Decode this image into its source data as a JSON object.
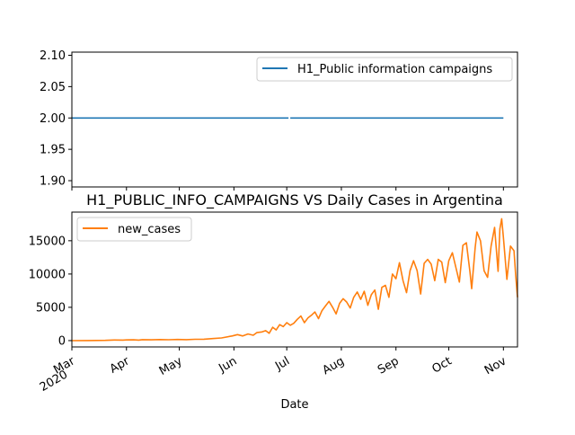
{
  "chart_data": [
    {
      "type": "line",
      "title": "",
      "xlabel": "",
      "ylabel": "",
      "ylim": [
        1.89,
        2.105
      ],
      "yticks": [
        "1.90",
        "1.95",
        "2.00",
        "2.05",
        "2.10"
      ],
      "legend": "top-right",
      "series": [
        {
          "name": "H1_Public information campaigns",
          "color": "#1f77b4",
          "segments": [
            [
              [
                "2020-03-01",
                2.0
              ],
              [
                "2020-07-02",
                2.0
              ]
            ],
            [
              [
                "2020-07-03",
                2.0
              ],
              [
                "2020-11-01",
                2.0
              ]
            ]
          ]
        }
      ]
    },
    {
      "type": "line",
      "title": "H1_PUBLIC_INFO_CAMPAIGNS VS Daily Cases in Argentina",
      "xlabel": "Date",
      "ylabel": "",
      "ylim": [
        -950,
        19300
      ],
      "yticks": [
        "0",
        "5000",
        "10000",
        "15000"
      ],
      "xticks": [
        {
          "date": "2020-03-01",
          "label": "Mar",
          "sub": "2020"
        },
        {
          "date": "2020-04-01",
          "label": "Apr"
        },
        {
          "date": "2020-05-01",
          "label": "May"
        },
        {
          "date": "2020-06-01",
          "label": "Jun"
        },
        {
          "date": "2020-07-01",
          "label": "Jul"
        },
        {
          "date": "2020-08-01",
          "label": "Aug"
        },
        {
          "date": "2020-09-01",
          "label": "Sep"
        },
        {
          "date": "2020-10-01",
          "label": "Oct"
        },
        {
          "date": "2020-11-01",
          "label": "Nov"
        }
      ],
      "legend": "top-left",
      "series": [
        {
          "name": "new_cases",
          "color": "#ff7f0e",
          "points": [
            [
              "2020-03-01",
              0
            ],
            [
              "2020-03-10",
              5
            ],
            [
              "2020-03-20",
              30
            ],
            [
              "2020-03-25",
              90
            ],
            [
              "2020-03-30",
              70
            ],
            [
              "2020-04-01",
              100
            ],
            [
              "2020-04-05",
              120
            ],
            [
              "2020-04-08",
              80
            ],
            [
              "2020-04-10",
              150
            ],
            [
              "2020-04-15",
              110
            ],
            [
              "2020-04-20",
              160
            ],
            [
              "2020-04-25",
              130
            ],
            [
              "2020-04-30",
              170
            ],
            [
              "2020-05-05",
              140
            ],
            [
              "2020-05-10",
              200
            ],
            [
              "2020-05-15",
              210
            ],
            [
              "2020-05-20",
              300
            ],
            [
              "2020-05-25",
              400
            ],
            [
              "2020-05-31",
              700
            ],
            [
              "2020-06-03",
              900
            ],
            [
              "2020-06-06",
              700
            ],
            [
              "2020-06-09",
              1000
            ],
            [
              "2020-06-12",
              800
            ],
            [
              "2020-06-14",
              1200
            ],
            [
              "2020-06-17",
              1300
            ],
            [
              "2020-06-19",
              1500
            ],
            [
              "2020-06-21",
              1100
            ],
            [
              "2020-06-23",
              2000
            ],
            [
              "2020-06-25",
              1600
            ],
            [
              "2020-06-27",
              2400
            ],
            [
              "2020-06-29",
              2100
            ],
            [
              "2020-07-01",
              2700
            ],
            [
              "2020-07-03",
              2300
            ],
            [
              "2020-07-05",
              2600
            ],
            [
              "2020-07-07",
              3200
            ],
            [
              "2020-07-09",
              3700
            ],
            [
              "2020-07-11",
              2700
            ],
            [
              "2020-07-13",
              3400
            ],
            [
              "2020-07-15",
              3800
            ],
            [
              "2020-07-17",
              4300
            ],
            [
              "2020-07-19",
              3300
            ],
            [
              "2020-07-21",
              4500
            ],
            [
              "2020-07-23",
              5200
            ],
            [
              "2020-07-25",
              5900
            ],
            [
              "2020-07-27",
              5000
            ],
            [
              "2020-07-29",
              4000
            ],
            [
              "2020-07-31",
              5600
            ],
            [
              "2020-08-02",
              6300
            ],
            [
              "2020-08-04",
              5800
            ],
            [
              "2020-08-06",
              4900
            ],
            [
              "2020-08-08",
              6500
            ],
            [
              "2020-08-10",
              7300
            ],
            [
              "2020-08-12",
              6200
            ],
            [
              "2020-08-14",
              7400
            ],
            [
              "2020-08-16",
              5300
            ],
            [
              "2020-08-18",
              6900
            ],
            [
              "2020-08-20",
              7600
            ],
            [
              "2020-08-22",
              4700
            ],
            [
              "2020-08-24",
              8000
            ],
            [
              "2020-08-26",
              8300
            ],
            [
              "2020-08-28",
              6500
            ],
            [
              "2020-08-30",
              10000
            ],
            [
              "2020-09-01",
              9300
            ],
            [
              "2020-09-03",
              11700
            ],
            [
              "2020-09-05",
              9000
            ],
            [
              "2020-09-07",
              7200
            ],
            [
              "2020-09-09",
              10500
            ],
            [
              "2020-09-11",
              12000
            ],
            [
              "2020-09-13",
              10500
            ],
            [
              "2020-09-15",
              7000
            ],
            [
              "2020-09-17",
              11600
            ],
            [
              "2020-09-19",
              12200
            ],
            [
              "2020-09-21",
              11500
            ],
            [
              "2020-09-23",
              9000
            ],
            [
              "2020-09-25",
              12200
            ],
            [
              "2020-09-27",
              11800
            ],
            [
              "2020-09-29",
              8700
            ],
            [
              "2020-10-01",
              12000
            ],
            [
              "2020-10-03",
              13200
            ],
            [
              "2020-10-05",
              11000
            ],
            [
              "2020-10-07",
              8800
            ],
            [
              "2020-10-09",
              14300
            ],
            [
              "2020-10-11",
              14700
            ],
            [
              "2020-10-13",
              10300
            ],
            [
              "2020-10-14",
              7800
            ],
            [
              "2020-10-16",
              14000
            ],
            [
              "2020-10-17",
              16300
            ],
            [
              "2020-10-19",
              15000
            ],
            [
              "2020-10-21",
              10500
            ],
            [
              "2020-10-23",
              9500
            ],
            [
              "2020-10-25",
              14200
            ],
            [
              "2020-10-27",
              17000
            ],
            [
              "2020-10-29",
              10400
            ],
            [
              "2020-10-30",
              16800
            ],
            [
              "2020-10-31",
              18300
            ],
            [
              "2020-11-01",
              15500
            ],
            [
              "2020-11-03",
              9200
            ],
            [
              "2020-11-05",
              14200
            ],
            [
              "2020-11-07",
              13500
            ],
            [
              "2020-11-08",
              9800
            ],
            [
              "2020-11-09",
              6500
            ]
          ]
        }
      ]
    }
  ]
}
